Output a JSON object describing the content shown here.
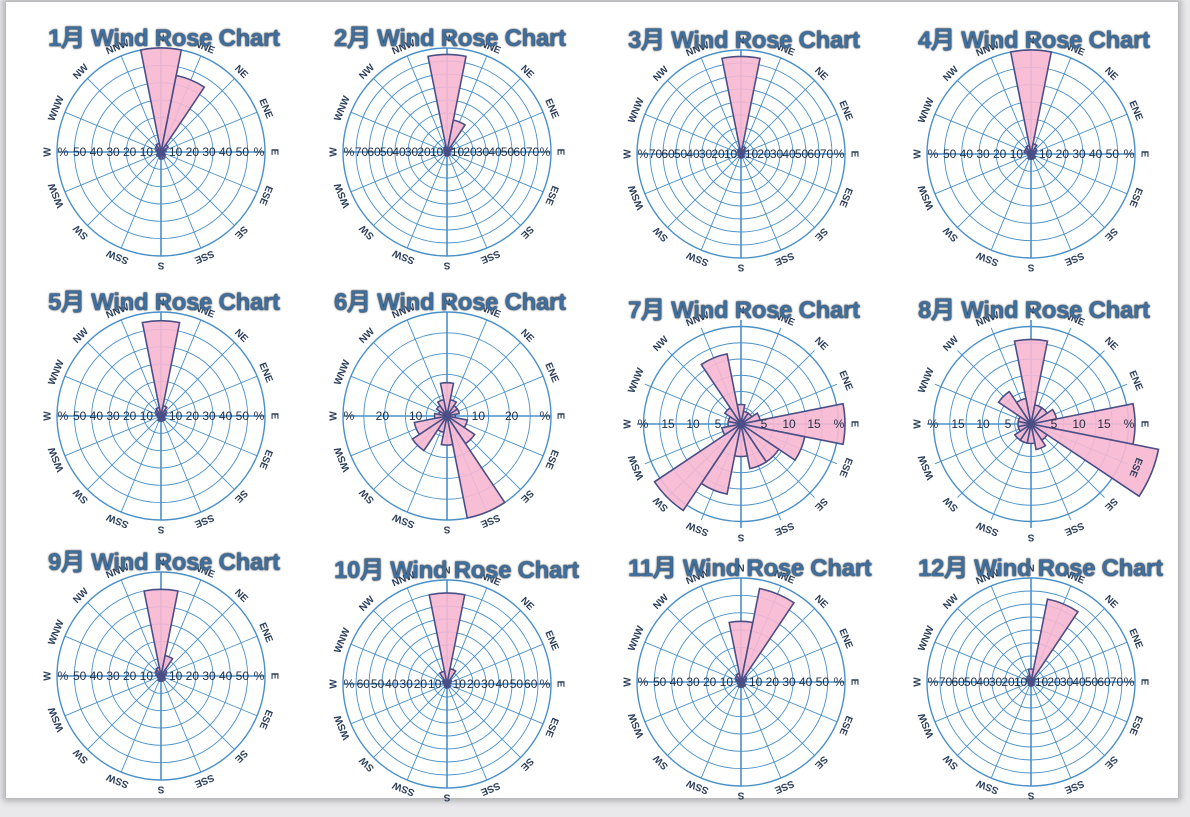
{
  "chart_data": [
    {
      "type": "wind-rose",
      "title": "1月 Wind Rose Chart",
      "directions": [
        "N",
        "NNE",
        "NE",
        "ENE",
        "E",
        "ESE",
        "SE",
        "SSE",
        "S",
        "SSW",
        "SW",
        "WSW",
        "W",
        "WNW",
        "NW",
        "NNW"
      ],
      "values": [
        60,
        45,
        5,
        3,
        2,
        2,
        3,
        4,
        4,
        3,
        3,
        2,
        2,
        3,
        4,
        5
      ],
      "rmax": 60,
      "tick_step": 10,
      "tick_labels": [
        "10",
        "20",
        "30",
        "40",
        "50",
        "%"
      ]
    },
    {
      "type": "wind-rose",
      "title": "2月 Wind Rose Chart",
      "directions": [
        "N",
        "NNE",
        "NE",
        "ENE",
        "E",
        "ESE",
        "SE",
        "SSE",
        "S",
        "SSW",
        "SW",
        "WSW",
        "W",
        "WNW",
        "NW",
        "NNW"
      ],
      "values": [
        75,
        25,
        5,
        3,
        2,
        2,
        3,
        3,
        3,
        3,
        2,
        2,
        2,
        2,
        3,
        4
      ],
      "rmax": 80,
      "tick_step": 10,
      "tick_labels": [
        "10",
        "20",
        "30",
        "40",
        "50",
        "60",
        "70",
        "%"
      ]
    },
    {
      "type": "wind-rose",
      "title": "3月 Wind Rose Chart",
      "directions": [
        "N",
        "NNE",
        "NE",
        "ENE",
        "E",
        "ESE",
        "SE",
        "SSE",
        "S",
        "SSW",
        "SW",
        "WSW",
        "W",
        "WNW",
        "NW",
        "NNW"
      ],
      "values": [
        75,
        6,
        4,
        3,
        2,
        2,
        3,
        3,
        3,
        3,
        2,
        2,
        2,
        2,
        3,
        4
      ],
      "rmax": 80,
      "tick_step": 10,
      "tick_labels": [
        "10",
        "20",
        "30",
        "40",
        "50",
        "60",
        "70",
        "%"
      ]
    },
    {
      "type": "wind-rose",
      "title": "4月 Wind Rose Chart",
      "directions": [
        "N",
        "NNE",
        "NE",
        "ENE",
        "E",
        "ESE",
        "SE",
        "SSE",
        "S",
        "SSW",
        "SW",
        "WSW",
        "W",
        "WNW",
        "NW",
        "NNW"
      ],
      "values": [
        60,
        6,
        4,
        3,
        2,
        2,
        3,
        3,
        3,
        3,
        2,
        2,
        2,
        4,
        4,
        5
      ],
      "rmax": 60,
      "tick_step": 10,
      "tick_labels": [
        "10",
        "20",
        "30",
        "40",
        "50",
        "%"
      ]
    },
    {
      "type": "wind-rose",
      "title": "5月 Wind Rose Chart",
      "directions": [
        "N",
        "NNE",
        "NE",
        "ENE",
        "E",
        "ESE",
        "SE",
        "SSE",
        "S",
        "SSW",
        "SW",
        "WSW",
        "W",
        "WNW",
        "NW",
        "NNW"
      ],
      "values": [
        55,
        6,
        4,
        3,
        2,
        2,
        3,
        3,
        3,
        3,
        2,
        2,
        2,
        3,
        4,
        5
      ],
      "rmax": 60,
      "tick_step": 10,
      "tick_labels": [
        "10",
        "20",
        "30",
        "40",
        "50",
        "%"
      ]
    },
    {
      "type": "wind-rose",
      "title": "6月 Wind Rose Chart",
      "directions": [
        "N",
        "NNE",
        "NE",
        "ENE",
        "E",
        "ESE",
        "SE",
        "SSE",
        "S",
        "SSW",
        "SW",
        "WSW",
        "W",
        "WNW",
        "NW",
        "NNW"
      ],
      "values": [
        8,
        4,
        3,
        3,
        2,
        5,
        8,
        25,
        7,
        4,
        10,
        8,
        3,
        2,
        3,
        4
      ],
      "rmax": 25,
      "tick_step": 5,
      "tick_labels": [
        "10",
        "20",
        "%"
      ]
    },
    {
      "type": "wind-rose",
      "title": "7月 Wind Rose Chart",
      "directions": [
        "N",
        "NNE",
        "NE",
        "ENE",
        "E",
        "ESE",
        "SE",
        "SSE",
        "S",
        "SSW",
        "SW",
        "WSW",
        "W",
        "WNW",
        "NW",
        "NNW"
      ],
      "values": [
        3,
        2,
        2,
        3,
        16,
        10,
        7,
        7,
        5,
        11,
        16,
        3,
        2,
        2,
        3,
        11
      ],
      "rmax": 16,
      "tick_step": 2.5,
      "tick_labels": [
        "5",
        "10",
        "15",
        "%"
      ]
    },
    {
      "type": "wind-rose",
      "title": "8月 Wind Rose Chart",
      "directions": [
        "N",
        "NNE",
        "NE",
        "ENE",
        "E",
        "ESE",
        "SE",
        "SSE",
        "S",
        "SSW",
        "SW",
        "WSW",
        "W",
        "WNW",
        "NW",
        "NNW"
      ],
      "values": [
        13,
        3,
        3,
        4,
        16,
        20,
        3,
        4,
        3,
        3,
        3,
        2,
        2,
        2,
        6,
        4
      ],
      "rmax": 16,
      "tick_step": 2.5,
      "tick_labels": [
        "5",
        "10",
        "15",
        "%"
      ]
    },
    {
      "type": "wind-rose",
      "title": "9月 Wind Rose Chart",
      "directions": [
        "N",
        "NNE",
        "NE",
        "ENE",
        "E",
        "ESE",
        "SE",
        "SSE",
        "S",
        "SSW",
        "SW",
        "WSW",
        "W",
        "WNW",
        "NW",
        "NNW"
      ],
      "values": [
        50,
        12,
        4,
        3,
        2,
        2,
        3,
        3,
        3,
        3,
        2,
        2,
        2,
        3,
        4,
        5
      ],
      "rmax": 60,
      "tick_step": 10,
      "tick_labels": [
        "10",
        "20",
        "30",
        "40",
        "50",
        "%"
      ]
    },
    {
      "type": "wind-rose",
      "title": "10月 Wind Rose Chart",
      "directions": [
        "N",
        "NNE",
        "NE",
        "ENE",
        "E",
        "ESE",
        "SE",
        "SSE",
        "S",
        "SSW",
        "SW",
        "WSW",
        "W",
        "WNW",
        "NW",
        "NNW"
      ],
      "values": [
        70,
        12,
        4,
        3,
        2,
        2,
        3,
        3,
        3,
        3,
        2,
        2,
        2,
        3,
        4,
        10
      ],
      "rmax": 80,
      "tick_step": 10,
      "tick_labels": [
        "10",
        "20",
        "30",
        "40",
        "50",
        "60",
        "%"
      ]
    },
    {
      "type": "wind-rose",
      "title": "11月 Wind Rose Chart",
      "directions": [
        "N",
        "NNE",
        "NE",
        "ENE",
        "E",
        "ESE",
        "SE",
        "SSE",
        "S",
        "SSW",
        "SW",
        "WSW",
        "W",
        "WNW",
        "NW",
        "NNW"
      ],
      "values": [
        35,
        55,
        4,
        3,
        2,
        2,
        3,
        3,
        3,
        3,
        2,
        2,
        2,
        3,
        4,
        5
      ],
      "rmax": 60,
      "tick_step": 10,
      "tick_labels": [
        "10",
        "20",
        "30",
        "40",
        "50",
        "%"
      ]
    },
    {
      "type": "wind-rose",
      "title": "12月 Wind Rose Chart",
      "directions": [
        "N",
        "NNE",
        "NE",
        "ENE",
        "E",
        "ESE",
        "SE",
        "SSE",
        "S",
        "SSW",
        "SW",
        "WSW",
        "W",
        "WNW",
        "NW",
        "NNW"
      ],
      "values": [
        10,
        65,
        4,
        3,
        2,
        2,
        3,
        3,
        3,
        3,
        2,
        2,
        2,
        3,
        4,
        5
      ],
      "rmax": 80,
      "tick_step": 10,
      "tick_labels": [
        "10",
        "20",
        "30",
        "40",
        "50",
        "60",
        "70",
        "%"
      ]
    }
  ],
  "colors": {
    "bar_fill": "#f7b7d2",
    "bar_stroke": "#4a4f86",
    "grid": "#4a90c8",
    "title": "#3e6f9e"
  }
}
